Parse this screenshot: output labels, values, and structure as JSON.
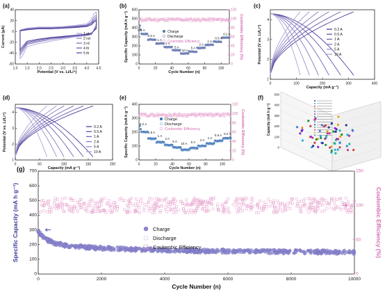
{
  "colors": {
    "purple": "#4b3f9a",
    "lightpurple": "#a9a3d6",
    "blue": "#3b78b8",
    "red": "#e04b4b",
    "pink": "#d46ab0",
    "lightpink": "#e7a6cf"
  },
  "chart_data": [
    {
      "panel": "(a)",
      "type": "line",
      "xlabel": "Potential (V vs. Li/Li⁺)",
      "ylabel": "Current (μA)",
      "xlim": [
        1.0,
        4.5
      ],
      "ylim": [
        -60,
        40
      ],
      "xticks": [
        1.0,
        1.5,
        2.0,
        2.5,
        3.0,
        3.5,
        4.0,
        4.5
      ],
      "yticks": [
        -60,
        -40,
        -20,
        0,
        20,
        40
      ],
      "legend": [
        "1 st",
        "2 nd",
        "3 rd",
        "4 th",
        "5 th"
      ],
      "series": [
        {
          "name": "1 st",
          "upper": [
            [
              1.2,
              3
            ],
            [
              1.5,
              6
            ],
            [
              2.0,
              8
            ],
            [
              2.5,
              8
            ],
            [
              3.0,
              9
            ],
            [
              3.5,
              11
            ],
            [
              4.0,
              14
            ],
            [
              4.2,
              22
            ],
            [
              4.3,
              32
            ],
            [
              4.4,
              36
            ]
          ],
          "lower": [
            [
              4.4,
              14
            ],
            [
              4.2,
              -6
            ],
            [
              4.0,
              -8
            ],
            [
              3.5,
              -10
            ],
            [
              3.0,
              -14
            ],
            [
              2.5,
              -18
            ],
            [
              2.0,
              -22
            ],
            [
              1.5,
              -28
            ],
            [
              1.3,
              -45
            ],
            [
              1.2,
              -50
            ]
          ]
        },
        {
          "name": "2 nd",
          "upper": [
            [
              1.2,
              2
            ],
            [
              1.5,
              5
            ],
            [
              2.0,
              7
            ],
            [
              2.5,
              7
            ],
            [
              3.0,
              8
            ],
            [
              3.5,
              10
            ],
            [
              4.0,
              12
            ],
            [
              4.2,
              18
            ],
            [
              4.3,
              26
            ],
            [
              4.4,
              30
            ]
          ],
          "lower": [
            [
              4.4,
              10
            ],
            [
              4.2,
              -5
            ],
            [
              4.0,
              -7
            ],
            [
              3.5,
              -9
            ],
            [
              3.0,
              -12
            ],
            [
              2.5,
              -15
            ],
            [
              2.0,
              -19
            ],
            [
              1.5,
              -24
            ],
            [
              1.3,
              -38
            ],
            [
              1.2,
              -44
            ]
          ]
        },
        {
          "name": "3 rd",
          "upper": [
            [
              1.2,
              2
            ],
            [
              1.5,
              4
            ],
            [
              2.0,
              6
            ],
            [
              2.5,
              6
            ],
            [
              3.0,
              7
            ],
            [
              3.5,
              9
            ],
            [
              4.0,
              11
            ],
            [
              4.2,
              16
            ],
            [
              4.3,
              22
            ],
            [
              4.4,
              26
            ]
          ],
          "lower": [
            [
              4.4,
              8
            ],
            [
              4.2,
              -4
            ],
            [
              4.0,
              -6
            ],
            [
              3.5,
              -8
            ],
            [
              3.0,
              -11
            ],
            [
              2.5,
              -13
            ],
            [
              2.0,
              -17
            ],
            [
              1.5,
              -22
            ],
            [
              1.3,
              -34
            ],
            [
              1.2,
              -40
            ]
          ]
        },
        {
          "name": "4 th",
          "upper": [
            [
              1.2,
              1
            ],
            [
              1.5,
              4
            ],
            [
              2.0,
              5
            ],
            [
              2.5,
              5
            ],
            [
              3.0,
              6
            ],
            [
              3.5,
              8
            ],
            [
              4.0,
              10
            ],
            [
              4.2,
              14
            ],
            [
              4.3,
              19
            ],
            [
              4.4,
              22
            ]
          ],
          "lower": [
            [
              4.4,
              6
            ],
            [
              4.2,
              -4
            ],
            [
              4.0,
              -5
            ],
            [
              3.5,
              -7
            ],
            [
              3.0,
              -10
            ],
            [
              2.5,
              -12
            ],
            [
              2.0,
              -15
            ],
            [
              1.5,
              -20
            ],
            [
              1.3,
              -31
            ],
            [
              1.2,
              -36
            ]
          ]
        },
        {
          "name": "5 th",
          "upper": [
            [
              1.2,
              1
            ],
            [
              1.5,
              3
            ],
            [
              2.0,
              5
            ],
            [
              2.5,
              5
            ],
            [
              3.0,
              6
            ],
            [
              3.5,
              7
            ],
            [
              4.0,
              9
            ],
            [
              4.2,
              12
            ],
            [
              4.3,
              17
            ],
            [
              4.4,
              20
            ]
          ],
          "lower": [
            [
              4.4,
              5
            ],
            [
              4.2,
              -3
            ],
            [
              4.0,
              -5
            ],
            [
              3.5,
              -7
            ],
            [
              3.0,
              -9
            ],
            [
              2.5,
              -11
            ],
            [
              2.0,
              -14
            ],
            [
              1.5,
              -18
            ],
            [
              1.3,
              -28
            ],
            [
              1.2,
              -33
            ]
          ]
        }
      ]
    },
    {
      "panel": "(b)",
      "type": "scatter",
      "xlabel": "Cycle Number (n)",
      "ylabel": "Specific Capacity (mA h g⁻¹)",
      "y2label": "Coulombic Efficiency (%)",
      "xlim": [
        0,
        110
      ],
      "ylim": [
        0,
        600
      ],
      "y2lim": [
        0,
        120
      ],
      "xticks": [
        0,
        20,
        40,
        60,
        80,
        100
      ],
      "yticks": [
        0,
        100,
        200,
        300,
        400,
        500,
        600
      ],
      "y2ticks": [
        0,
        20,
        40,
        60,
        80,
        100,
        120
      ],
      "legend": [
        "Charge",
        "Discharge",
        "Coulombic Efficiency"
      ],
      "rate_labels": [
        {
          "text": "0.2 A",
          "cycle": 3,
          "capacity": 360
        },
        {
          "text": "0.5 A",
          "cycle": 15,
          "capacity": 300
        },
        {
          "text": "1 A",
          "cycle": 25,
          "capacity": 255
        },
        {
          "text": "2 A",
          "cycle": 35,
          "capacity": 215
        },
        {
          "text": "5 A",
          "cycle": 46,
          "capacity": 175
        },
        {
          "text": "10 A",
          "cycle": 56,
          "capacity": 140
        },
        {
          "text": "5 A",
          "cycle": 66,
          "capacity": 165
        },
        {
          "text": "2 A",
          "cycle": 76,
          "capacity": 205
        },
        {
          "text": "1 A",
          "cycle": 86,
          "capacity": 240
        },
        {
          "text": "0.5 A",
          "cycle": 97,
          "capacity": 275
        },
        {
          "text": "0.2 A",
          "cycle": 107,
          "capacity": 320
        }
      ],
      "steps": [
        {
          "from": 1,
          "to": 10,
          "capacity": 330,
          "first": 420
        },
        {
          "from": 11,
          "to": 20,
          "capacity": 268
        },
        {
          "from": 21,
          "to": 30,
          "capacity": 225
        },
        {
          "from": 31,
          "to": 40,
          "capacity": 185
        },
        {
          "from": 41,
          "to": 50,
          "capacity": 150
        },
        {
          "from": 51,
          "to": 60,
          "capacity": 115
        },
        {
          "from": 61,
          "to": 70,
          "capacity": 135
        },
        {
          "from": 71,
          "to": 80,
          "capacity": 175
        },
        {
          "from": 81,
          "to": 90,
          "capacity": 210
        },
        {
          "from": 91,
          "to": 100,
          "capacity": 245
        },
        {
          "from": 101,
          "to": 110,
          "capacity": 290
        }
      ],
      "ce_percent": 98
    },
    {
      "panel": "(c)",
      "type": "line",
      "xlabel": "Capacity (mA g⁻¹)",
      "ylabel": "Potential (V vs. Li/Li⁺)",
      "xlim": [
        0,
        400
      ],
      "ylim": [
        1,
        4.5
      ],
      "xticks": [
        0,
        100,
        200,
        300,
        400
      ],
      "yticks": [
        1,
        2,
        3,
        4
      ],
      "legend": [
        "0.2 A",
        "0.5 A",
        "1 A",
        "2 A",
        "5 A",
        "10 A"
      ],
      "capacities": [
        320,
        270,
        225,
        185,
        150,
        115
      ]
    },
    {
      "panel": "(d)",
      "type": "line",
      "xlabel": "Capacity (mA g⁻¹)",
      "ylabel": "Potential (V vs. Li/Li⁺)",
      "xlim": [
        0,
        200
      ],
      "ylim": [
        1,
        4.5
      ],
      "xticks": [
        0,
        50,
        100,
        150,
        200
      ],
      "yticks": [
        1,
        2,
        3,
        4
      ],
      "legend": [
        "0.2 A",
        "0.5 A",
        "1 A",
        "2 A",
        "5 A",
        "10 A"
      ],
      "capacities": [
        160,
        140,
        120,
        100,
        85,
        65
      ]
    },
    {
      "panel": "(e)",
      "type": "scatter",
      "xlabel": "Cycle Number (n)",
      "ylabel": "Specific Capacity (mA h g⁻¹)",
      "y2label": "Coulombic Efficiency (%)",
      "xlim": [
        0,
        110
      ],
      "ylim": [
        0,
        400
      ],
      "y2lim": [
        0,
        120
      ],
      "xticks": [
        0,
        20,
        40,
        60,
        80,
        100
      ],
      "yticks": [
        0,
        100,
        200,
        300,
        400
      ],
      "y2ticks": [
        0,
        20,
        40,
        60,
        80,
        100,
        120
      ],
      "legend": [
        "Charge",
        "Discharge",
        "Coulombic Efficiency"
      ],
      "rate_labels": [
        {
          "text": "0.2 A",
          "cycle": 5,
          "capacity": 250
        },
        {
          "text": "0.5 A",
          "cycle": 15,
          "capacity": 190
        },
        {
          "text": "1 A",
          "cycle": 25,
          "capacity": 165
        },
        {
          "text": "2 A",
          "cycle": 34,
          "capacity": 145
        },
        {
          "text": "5 A",
          "cycle": 43,
          "capacity": 125
        },
        {
          "text": "10 A",
          "cycle": 54,
          "capacity": 110
        },
        {
          "text": "5 A",
          "cycle": 65,
          "capacity": 120
        },
        {
          "text": "2 A",
          "cycle": 76,
          "capacity": 135
        },
        {
          "text": "1 A",
          "cycle": 85,
          "capacity": 150
        },
        {
          "text": "0.5 A",
          "cycle": 95,
          "capacity": 170
        },
        {
          "text": "0.2 A",
          "cycle": 106,
          "capacity": 180
        }
      ],
      "steps": [
        {
          "from": 1,
          "to": 10,
          "capacity": 200,
          "first": 240
        },
        {
          "from": 11,
          "to": 20,
          "capacity": 150
        },
        {
          "from": 21,
          "to": 30,
          "capacity": 125
        },
        {
          "from": 31,
          "to": 40,
          "capacity": 105
        },
        {
          "from": 41,
          "to": 50,
          "capacity": 88
        },
        {
          "from": 51,
          "to": 60,
          "capacity": 70
        },
        {
          "from": 61,
          "to": 70,
          "capacity": 82
        },
        {
          "from": 71,
          "to": 80,
          "capacity": 98
        },
        {
          "from": 81,
          "to": 90,
          "capacity": 115
        },
        {
          "from": 91,
          "to": 100,
          "capacity": 135
        },
        {
          "from": 101,
          "to": 110,
          "capacity": 155
        }
      ],
      "ce_percent": 97
    },
    {
      "panel": "(f)",
      "type": "scatter",
      "ylabel": "Capacity (mA h g⁻¹)",
      "yticks": [
        0,
        100,
        200,
        300,
        400,
        500
      ],
      "note": "3D comparison scatter of literature works; axis and legend text too small to read"
    },
    {
      "panel": "(g)",
      "type": "scatter",
      "xlabel": "Cycle Number (n)",
      "ylabel": "Specific Capacity (mA h g⁻¹)",
      "y2label": "Coulombic Efficiency (%)",
      "xlim": [
        0,
        10000
      ],
      "ylim": [
        0,
        700
      ],
      "y2lim": [
        0,
        150
      ],
      "xticks": [
        0,
        2000,
        4000,
        6000,
        8000,
        10000
      ],
      "yticks": [
        0,
        100,
        200,
        300,
        400,
        500,
        600,
        700
      ],
      "y2ticks": [
        0,
        50,
        100,
        150
      ],
      "legend": [
        "Charge",
        "Discharge",
        "Coulombic Efficiency"
      ],
      "capacity_trend": [
        [
          0,
          290
        ],
        [
          100,
          260
        ],
        [
          300,
          230
        ],
        [
          600,
          205
        ],
        [
          1000,
          190
        ],
        [
          2000,
          175
        ],
        [
          3000,
          168
        ],
        [
          4000,
          162
        ],
        [
          5000,
          158
        ],
        [
          6000,
          155
        ],
        [
          7000,
          153
        ],
        [
          8000,
          151
        ],
        [
          9000,
          150
        ],
        [
          10000,
          148
        ]
      ],
      "ce_percent": 100
    }
  ]
}
